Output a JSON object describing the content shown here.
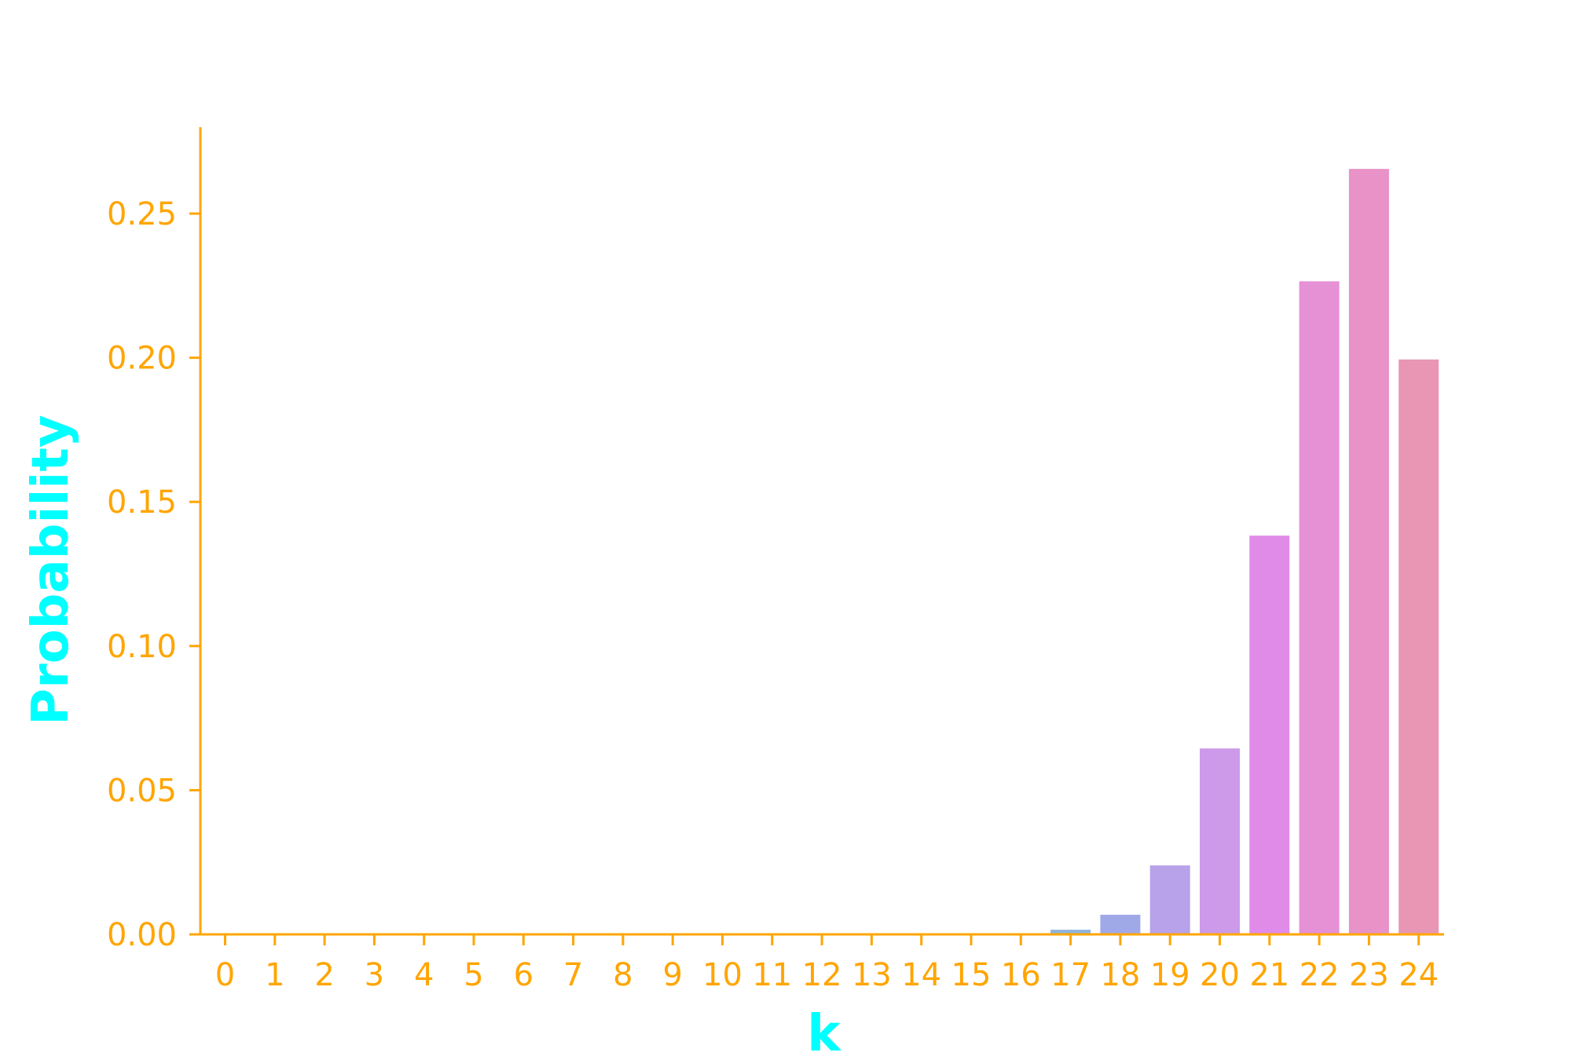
{
  "chart_data": {
    "type": "bar",
    "title": "",
    "xlabel": "k",
    "ylabel": "Probability",
    "categories": [
      "0",
      "1",
      "2",
      "3",
      "4",
      "5",
      "6",
      "7",
      "8",
      "9",
      "10",
      "11",
      "12",
      "13",
      "14",
      "15",
      "16",
      "17",
      "18",
      "19",
      "20",
      "21",
      "22",
      "23",
      "24"
    ],
    "values": [
      0,
      0,
      0,
      0,
      0,
      0,
      0,
      0,
      0,
      0,
      0,
      0,
      0,
      0,
      0,
      0,
      0.0004,
      0.0016,
      0.0068,
      0.0239,
      0.0645,
      0.1383,
      0.2265,
      0.2655,
      0.1994
    ],
    "ylim": [
      0,
      0.28
    ],
    "yticks": [
      "0.00",
      "0.05",
      "0.10",
      "0.15",
      "0.20",
      "0.25"
    ],
    "grid": false,
    "legend": "none",
    "colors": {
      "axis": "#FFA500",
      "tick_label": "#FFA500",
      "axis_label": "#00FFFF",
      "bars": [
        "#5E9EC8",
        "#659DCB",
        "#6C9CCE",
        "#739BD2",
        "#7A9AD5",
        "#8199D8",
        "#8898DB",
        "#8F97DE",
        "#9696E1",
        "#9D95E4",
        "#A494E7",
        "#AB93EA",
        "#B292ED",
        "#B991F0",
        "#C090F3",
        "#C78FF5",
        "#92B2D6",
        "#8FB4DB",
        "#A0A9E8",
        "#B8A2EA",
        "#CC9AE8",
        "#E18BE9",
        "#E690D6",
        "#E892C7",
        "#E896B3"
      ]
    }
  }
}
